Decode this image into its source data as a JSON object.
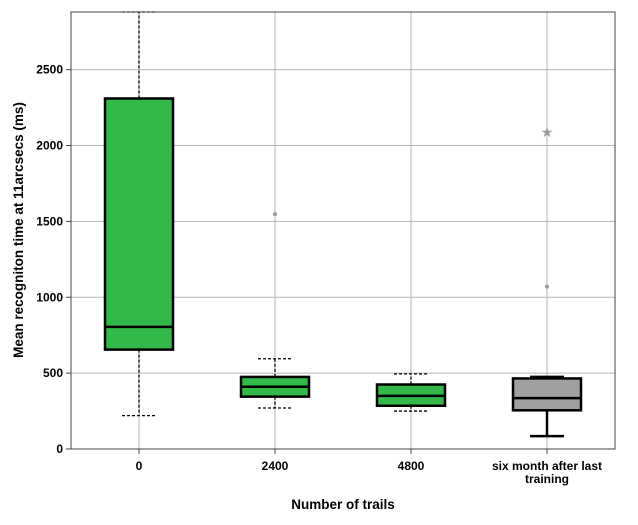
{
  "chart_data": {
    "type": "boxplot",
    "xlabel": "Number of trails",
    "ylabel": "Mean recogniton time at 11arcsecs (ms)",
    "ylim": [
      0,
      2880
    ],
    "yticks": [
      0,
      500,
      1000,
      1500,
      2000,
      2500
    ],
    "grid": true,
    "categories": [
      {
        "label_lines": [
          "0"
        ],
        "color": "#33b84a",
        "whisker_style": "dashed",
        "min": 220,
        "q1": 655,
        "median": 805,
        "q3": 2310,
        "max": 2880,
        "outliers": []
      },
      {
        "label_lines": [
          "2400"
        ],
        "color": "#33b84a",
        "whisker_style": "dashed",
        "min": 270,
        "q1": 345,
        "median": 410,
        "q3": 475,
        "max": 595,
        "outliers": [
          1548
        ]
      },
      {
        "label_lines": [
          "4800"
        ],
        "color": "#33b84a",
        "whisker_style": "dashed",
        "min": 250,
        "q1": 285,
        "median": 350,
        "q3": 425,
        "max": 495,
        "outliers": []
      },
      {
        "label_lines": [
          "six month after last",
          "training"
        ],
        "color": "#a0a0a0",
        "whisker_style": "solid",
        "min": 85,
        "q1": 255,
        "median": 335,
        "q3": 465,
        "max": 475,
        "outliers": [
          1070
        ],
        "extremes": [
          2090
        ]
      }
    ]
  }
}
